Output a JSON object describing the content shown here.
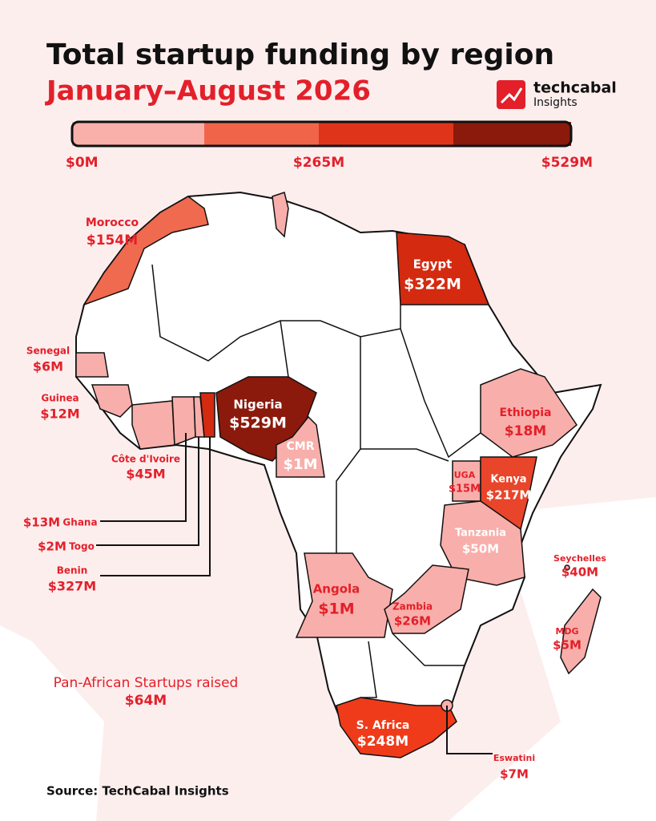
{
  "header": {
    "title": "Total startup funding by region",
    "subtitle": "January–August 2026"
  },
  "brand": {
    "name": "techcabal",
    "sub": "Insights"
  },
  "legend": {
    "labels": [
      "$0M",
      "$265M",
      "$529M"
    ]
  },
  "regions": [
    {
      "name": "Morocco",
      "amount": "$154M",
      "color": "#ef6a4f"
    },
    {
      "name": "Egypt",
      "amount": "$322M",
      "color": "#d42a10"
    },
    {
      "name": "Senegal",
      "amount": "$6M",
      "color": "#f8aeaa"
    },
    {
      "name": "Guinea",
      "amount": "$12M",
      "color": "#f8aeaa"
    },
    {
      "name": "Côte d'Ivoire",
      "amount": "$45M",
      "color": "#f8aeaa"
    },
    {
      "name": "Ghana",
      "amount": "$13M",
      "color": "#f8aeaa"
    },
    {
      "name": "Togo",
      "amount": "$2M",
      "color": "#f8aeaa"
    },
    {
      "name": "Benin",
      "amount": "$327M",
      "color": "#d42a10"
    },
    {
      "name": "Nigeria",
      "amount": "$529M",
      "color": "#8b1a0c"
    },
    {
      "name": "CMR",
      "amount": "$1M",
      "color": "#f8aeaa"
    },
    {
      "name": "Ethiopia",
      "amount": "$18M",
      "color": "#f8aeaa"
    },
    {
      "name": "UGA",
      "amount": "$15M",
      "color": "#f8aeaa"
    },
    {
      "name": "Kenya",
      "amount": "$217M",
      "color": "#e8452a"
    },
    {
      "name": "Tanzania",
      "amount": "$50M",
      "color": "#f8aeaa"
    },
    {
      "name": "Seychelles",
      "amount": "$40M",
      "color": "#f8aeaa"
    },
    {
      "name": "Angola",
      "amount": "$1M",
      "color": "#f8aeaa"
    },
    {
      "name": "Zambia",
      "amount": "$26M",
      "color": "#f8aeaa"
    },
    {
      "name": "MDG",
      "amount": "$5M",
      "color": "#f8aeaa"
    },
    {
      "name": "S. Africa",
      "amount": "$248M",
      "color": "#ef3b1a"
    },
    {
      "name": "Eswatini",
      "amount": "$7M",
      "color": "#f8aeaa"
    }
  ],
  "note": {
    "text": "Pan-African Startups raised",
    "amount": "$64M"
  },
  "source": "Source: TechCabal Insights"
}
